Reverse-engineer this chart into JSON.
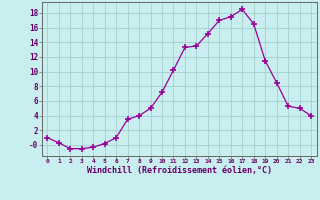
{
  "x": [
    0,
    1,
    2,
    3,
    4,
    5,
    6,
    7,
    8,
    9,
    10,
    11,
    12,
    13,
    14,
    15,
    16,
    17,
    18,
    19,
    20,
    21,
    22,
    23
  ],
  "y": [
    1.0,
    0.3,
    -0.5,
    -0.5,
    -0.3,
    0.2,
    1.0,
    3.5,
    4.0,
    5.0,
    7.2,
    10.2,
    13.3,
    13.5,
    15.2,
    17.0,
    17.5,
    18.5,
    16.5,
    11.5,
    8.5,
    5.3,
    5.0,
    4.0
  ],
  "line_color": "#990099",
  "marker": "+",
  "marker_size": 4,
  "bg_color": "#c8eef0",
  "grid_color": "#a0c8c8",
  "xlabel": "Windchill (Refroidissement éolien,°C)",
  "xlabel_color": "#660066",
  "tick_color": "#660066",
  "axis_color": "#666666",
  "ylim": [
    -1.5,
    19.5
  ],
  "xlim": [
    -0.5,
    23.5
  ],
  "yticks": [
    0,
    2,
    4,
    6,
    8,
    10,
    12,
    14,
    16,
    18
  ],
  "ytick_labels": [
    "-0",
    "2",
    "4",
    "6",
    "8",
    "10",
    "12",
    "14",
    "16",
    "18"
  ],
  "xticks": [
    0,
    1,
    2,
    3,
    4,
    5,
    6,
    7,
    8,
    9,
    10,
    11,
    12,
    13,
    14,
    15,
    16,
    17,
    18,
    19,
    20,
    21,
    22,
    23
  ]
}
